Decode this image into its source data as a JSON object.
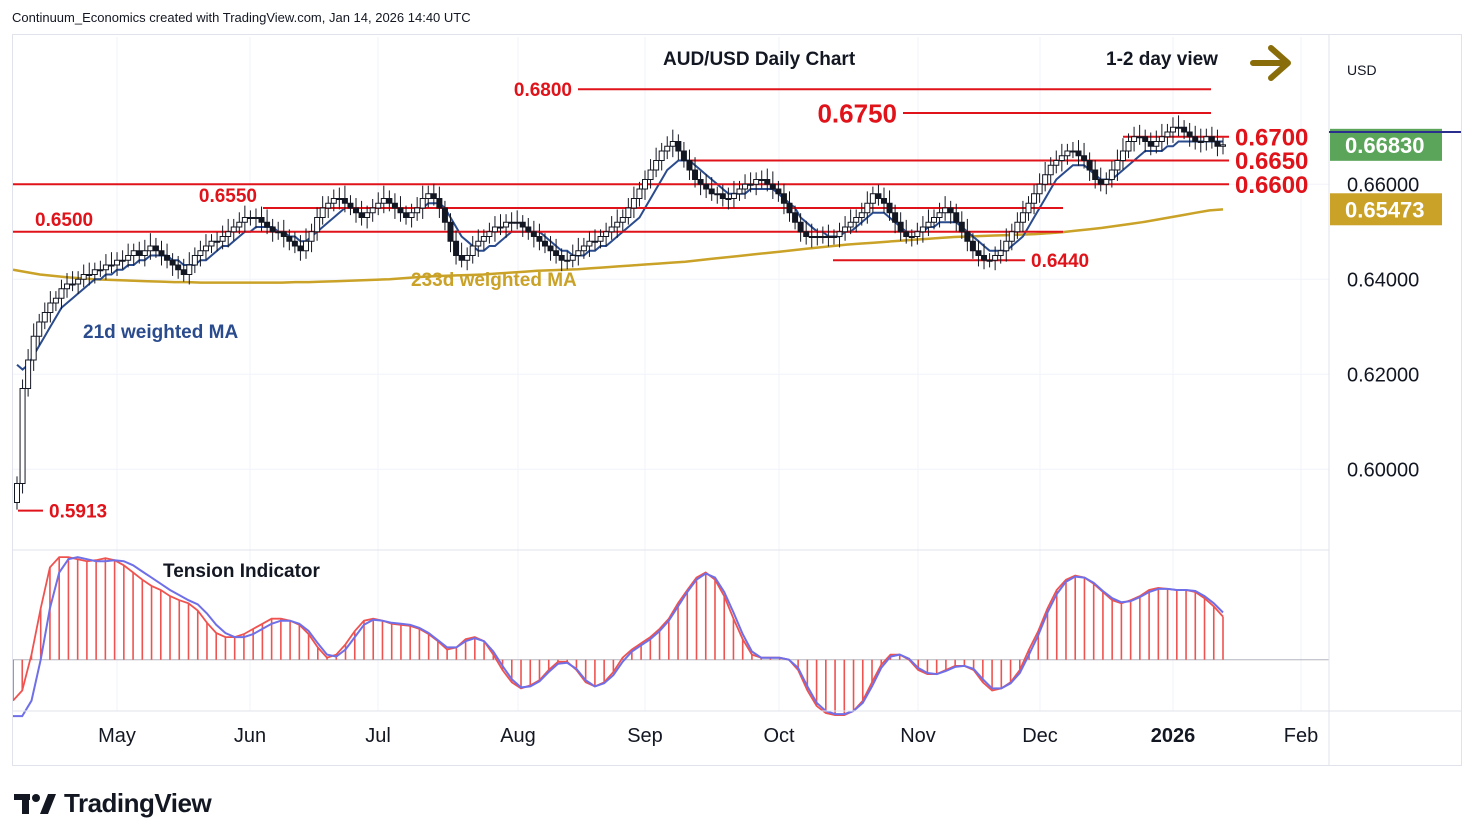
{
  "header": {
    "text": "Continuum_Economics created with TradingView.com, Jan 14, 2026 14:40 UTC"
  },
  "brand": {
    "name": "TradingView"
  },
  "colors": {
    "up": "#ffffff",
    "down": "#131722",
    "wick": "#131722",
    "ma21": "#2a4b8d",
    "ma233": "#c9a227",
    "level": "#e0131a",
    "arrow": "#8a6d0b",
    "tension_bar": "#ef5350",
    "tension_line": "#6f6fe8"
  },
  "chart_data": [
    {
      "type": "candlestick",
      "title": "AUD/USD Daily Chart",
      "view_label": "1-2 day view",
      "view_direction_icon": "arrow-right-icon",
      "currency": "USD",
      "x_ticks": [
        "May",
        "Jun",
        "Jul",
        "Aug",
        "Sep",
        "Oct",
        "Nov",
        "Dec",
        "2026",
        "Feb"
      ],
      "y_ticks": [
        "0.60000",
        "0.62000",
        "0.64000",
        "0.66000"
      ],
      "ylim": [
        0.583,
        0.691
      ],
      "price_badges": [
        {
          "label": "0.66830",
          "value": 0.6683,
          "color": "#5aa55a",
          "text_color": "#ffffff"
        },
        {
          "label": "0.65473",
          "value": 0.65473,
          "color": "#c9a227",
          "text_color": "#ffffff"
        }
      ],
      "levels": [
        {
          "label": "0.6800",
          "value": 0.68,
          "side": "left"
        },
        {
          "label": "0.6750",
          "value": 0.675,
          "side": "left"
        },
        {
          "label": "0.6700",
          "value": 0.67,
          "side": "right"
        },
        {
          "label": "0.6650",
          "value": 0.665,
          "side": "right"
        },
        {
          "label": "0.6600",
          "value": 0.66,
          "side": "right"
        },
        {
          "label": "0.6550",
          "value": 0.655,
          "side": "left"
        },
        {
          "label": "0.6500",
          "value": 0.65,
          "side": "left"
        },
        {
          "label": "0.6440",
          "value": 0.644,
          "side": "right"
        },
        {
          "label": "0.5913",
          "value": 0.5913,
          "side": "right"
        }
      ],
      "ma_labels": {
        "ma21": "21d weighted MA",
        "ma233": "233d weighted MA"
      },
      "series": [
        {
          "name": "Close",
          "values": [
            0.597,
            0.617,
            0.623,
            0.628,
            0.631,
            0.633,
            0.635,
            0.636,
            0.638,
            0.639,
            0.639,
            0.64,
            0.641,
            0.641,
            0.642,
            0.642,
            0.643,
            0.643,
            0.644,
            0.644,
            0.645,
            0.646,
            0.645,
            0.646,
            0.647,
            0.646,
            0.645,
            0.644,
            0.643,
            0.642,
            0.641,
            0.643,
            0.645,
            0.646,
            0.647,
            0.648,
            0.648,
            0.649,
            0.65,
            0.651,
            0.652,
            0.653,
            0.653,
            0.653,
            0.652,
            0.651,
            0.65,
            0.65,
            0.649,
            0.648,
            0.647,
            0.646,
            0.648,
            0.65,
            0.653,
            0.655,
            0.656,
            0.657,
            0.657,
            0.656,
            0.655,
            0.654,
            0.653,
            0.654,
            0.655,
            0.656,
            0.657,
            0.656,
            0.655,
            0.654,
            0.653,
            0.654,
            0.655,
            0.657,
            0.658,
            0.657,
            0.655,
            0.652,
            0.648,
            0.645,
            0.644,
            0.645,
            0.647,
            0.648,
            0.649,
            0.65,
            0.651,
            0.651,
            0.652,
            0.652,
            0.652,
            0.651,
            0.65,
            0.649,
            0.648,
            0.647,
            0.646,
            0.645,
            0.644,
            0.644,
            0.645,
            0.646,
            0.647,
            0.648,
            0.648,
            0.649,
            0.65,
            0.651,
            0.652,
            0.653,
            0.655,
            0.657,
            0.659,
            0.661,
            0.663,
            0.665,
            0.667,
            0.668,
            0.669,
            0.667,
            0.665,
            0.663,
            0.661,
            0.66,
            0.659,
            0.658,
            0.658,
            0.657,
            0.657,
            0.658,
            0.659,
            0.66,
            0.66,
            0.661,
            0.661,
            0.66,
            0.659,
            0.658,
            0.656,
            0.654,
            0.652,
            0.65,
            0.649,
            0.649,
            0.649,
            0.649,
            0.649,
            0.649,
            0.65,
            0.651,
            0.652,
            0.653,
            0.654,
            0.656,
            0.658,
            0.657,
            0.656,
            0.654,
            0.652,
            0.65,
            0.649,
            0.649,
            0.65,
            0.651,
            0.652,
            0.653,
            0.654,
            0.655,
            0.654,
            0.652,
            0.65,
            0.648,
            0.646,
            0.645,
            0.644,
            0.644,
            0.645,
            0.646,
            0.648,
            0.65,
            0.652,
            0.654,
            0.656,
            0.658,
            0.66,
            0.662,
            0.664,
            0.665,
            0.666,
            0.667,
            0.667,
            0.666,
            0.665,
            0.663,
            0.661,
            0.66,
            0.661,
            0.663,
            0.665,
            0.667,
            0.669,
            0.67,
            0.67,
            0.669,
            0.668,
            0.669,
            0.67,
            0.671,
            0.672,
            0.672,
            0.671,
            0.67,
            0.669,
            0.669,
            0.67,
            0.669,
            0.668,
            0.6683
          ]
        },
        {
          "name": "21d weighted MA",
          "values": [
            0.622,
            0.621,
            0.622,
            0.624,
            0.626,
            0.628,
            0.63,
            0.632,
            0.634,
            0.635,
            0.636,
            0.637,
            0.638,
            0.639,
            0.64,
            0.64,
            0.641,
            0.641,
            0.642,
            0.642,
            0.643,
            0.643,
            0.644,
            0.644,
            0.645,
            0.645,
            0.645,
            0.645,
            0.644,
            0.644,
            0.643,
            0.643,
            0.643,
            0.644,
            0.644,
            0.645,
            0.646,
            0.647,
            0.647,
            0.648,
            0.649,
            0.65,
            0.65,
            0.651,
            0.651,
            0.651,
            0.651,
            0.65,
            0.65,
            0.649,
            0.649,
            0.648,
            0.648,
            0.649,
            0.65,
            0.651,
            0.652,
            0.653,
            0.654,
            0.655,
            0.655,
            0.655,
            0.655,
            0.655,
            0.655,
            0.655,
            0.655,
            0.655,
            0.655,
            0.655,
            0.655,
            0.655,
            0.655,
            0.655,
            0.656,
            0.656,
            0.656,
            0.655,
            0.653,
            0.651,
            0.649,
            0.648,
            0.647,
            0.646,
            0.646,
            0.647,
            0.647,
            0.648,
            0.649,
            0.65,
            0.65,
            0.65,
            0.65,
            0.65,
            0.65,
            0.649,
            0.648,
            0.647,
            0.646,
            0.646,
            0.645,
            0.645,
            0.645,
            0.646,
            0.646,
            0.647,
            0.647,
            0.648,
            0.649,
            0.65,
            0.651,
            0.652,
            0.653,
            0.655,
            0.657,
            0.659,
            0.661,
            0.663,
            0.664,
            0.665,
            0.665,
            0.665,
            0.664,
            0.663,
            0.662,
            0.661,
            0.66,
            0.659,
            0.658,
            0.658,
            0.658,
            0.658,
            0.659,
            0.659,
            0.659,
            0.659,
            0.659,
            0.658,
            0.657,
            0.656,
            0.655,
            0.653,
            0.652,
            0.651,
            0.65,
            0.65,
            0.649,
            0.649,
            0.649,
            0.65,
            0.65,
            0.651,
            0.652,
            0.653,
            0.654,
            0.654,
            0.654,
            0.653,
            0.652,
            0.651,
            0.65,
            0.65,
            0.65,
            0.65,
            0.651,
            0.651,
            0.652,
            0.652,
            0.652,
            0.652,
            0.651,
            0.65,
            0.649,
            0.648,
            0.647,
            0.646,
            0.646,
            0.646,
            0.646,
            0.647,
            0.648,
            0.649,
            0.651,
            0.653,
            0.655,
            0.657,
            0.659,
            0.661,
            0.662,
            0.663,
            0.664,
            0.664,
            0.664,
            0.663,
            0.662,
            0.661,
            0.661,
            0.661,
            0.662,
            0.663,
            0.664,
            0.665,
            0.666,
            0.667,
            0.667,
            0.667,
            0.667,
            0.668,
            0.668,
            0.669,
            0.669,
            0.669,
            0.669,
            0.669,
            0.669,
            0.669,
            0.669,
            0.669
          ]
        },
        {
          "name": "233d weighted MA",
          "values": [
            0.642,
            0.6415,
            0.641,
            0.6407,
            0.6404,
            0.6402,
            0.64,
            0.6399,
            0.6398,
            0.6397,
            0.6396,
            0.6395,
            0.6394,
            0.6394,
            0.6393,
            0.6393,
            0.6393,
            0.6393,
            0.6393,
            0.6393,
            0.6393,
            0.6394,
            0.6394,
            0.6395,
            0.6396,
            0.6397,
            0.6398,
            0.6399,
            0.64,
            0.6402,
            0.6404,
            0.6406,
            0.6407,
            0.6408,
            0.6409,
            0.641,
            0.6412,
            0.6414,
            0.6416,
            0.6418,
            0.6419,
            0.642,
            0.6421,
            0.6423,
            0.6425,
            0.6427,
            0.6429,
            0.6431,
            0.6433,
            0.6435,
            0.6437,
            0.644,
            0.6443,
            0.6446,
            0.6449,
            0.6452,
            0.6455,
            0.6458,
            0.6461,
            0.6464,
            0.6467,
            0.647,
            0.6473,
            0.6475,
            0.6477,
            0.6479,
            0.6481,
            0.6483,
            0.6485,
            0.6487,
            0.6489,
            0.649,
            0.6491,
            0.6492,
            0.6493,
            0.6494,
            0.6495,
            0.6497,
            0.6499,
            0.6502,
            0.6505,
            0.6508,
            0.6512,
            0.6516,
            0.652,
            0.6525,
            0.653,
            0.6535,
            0.654,
            0.6545,
            0.6547
          ]
        }
      ]
    },
    {
      "type": "bar",
      "title": "Tension Indicator",
      "ylim": [
        -0.5,
        1.05
      ],
      "series": [
        {
          "name": "Tension",
          "values": [
            -0.4,
            -0.3,
            0.05,
            0.5,
            0.9,
            1.0,
            1.0,
            0.98,
            0.96,
            0.97,
            0.99,
            0.97,
            0.92,
            0.85,
            0.78,
            0.72,
            0.68,
            0.62,
            0.58,
            0.55,
            0.48,
            0.36,
            0.26,
            0.22,
            0.22,
            0.25,
            0.3,
            0.35,
            0.4,
            0.4,
            0.38,
            0.34,
            0.25,
            0.12,
            0.02,
            0.05,
            0.15,
            0.28,
            0.38,
            0.4,
            0.38,
            0.35,
            0.34,
            0.33,
            0.3,
            0.25,
            0.18,
            0.1,
            0.12,
            0.2,
            0.22,
            0.18,
            0.05,
            -0.1,
            -0.22,
            -0.28,
            -0.25,
            -0.2,
            -0.1,
            -0.02,
            -0.02,
            -0.1,
            -0.22,
            -0.26,
            -0.22,
            -0.12,
            0.02,
            0.1,
            0.16,
            0.22,
            0.3,
            0.4,
            0.55,
            0.68,
            0.8,
            0.85,
            0.78,
            0.62,
            0.4,
            0.2,
            0.05,
            0.02,
            0.02,
            0.02,
            0.0,
            -0.1,
            -0.3,
            -0.45,
            -0.52,
            -0.54,
            -0.54,
            -0.5,
            -0.4,
            -0.22,
            -0.05,
            0.05,
            0.05,
            0.0,
            -0.1,
            -0.14,
            -0.14,
            -0.1,
            -0.06,
            -0.06,
            -0.1,
            -0.22,
            -0.3,
            -0.28,
            -0.22,
            -0.1,
            0.1,
            0.28,
            0.5,
            0.68,
            0.78,
            0.82,
            0.8,
            0.74,
            0.66,
            0.58,
            0.55,
            0.58,
            0.62,
            0.68,
            0.7,
            0.69,
            0.68,
            0.68,
            0.66,
            0.6,
            0.52,
            0.42
          ]
        },
        {
          "name": "Signal",
          "values": [
            -0.55,
            -0.55,
            -0.4,
            0.0,
            0.5,
            0.85,
            0.98,
            1.0,
            0.98,
            0.96,
            0.96,
            0.97,
            0.96,
            0.92,
            0.86,
            0.8,
            0.74,
            0.68,
            0.63,
            0.58,
            0.54,
            0.45,
            0.34,
            0.26,
            0.22,
            0.22,
            0.25,
            0.3,
            0.35,
            0.38,
            0.38,
            0.35,
            0.28,
            0.16,
            0.05,
            0.03,
            0.1,
            0.22,
            0.34,
            0.39,
            0.38,
            0.36,
            0.35,
            0.34,
            0.31,
            0.26,
            0.19,
            0.12,
            0.12,
            0.18,
            0.21,
            0.18,
            0.08,
            -0.06,
            -0.19,
            -0.27,
            -0.26,
            -0.21,
            -0.12,
            -0.04,
            -0.03,
            -0.09,
            -0.2,
            -0.26,
            -0.23,
            -0.15,
            -0.02,
            0.08,
            0.14,
            0.2,
            0.28,
            0.38,
            0.52,
            0.66,
            0.78,
            0.84,
            0.8,
            0.66,
            0.46,
            0.25,
            0.08,
            0.02,
            0.02,
            0.02,
            0.0,
            -0.08,
            -0.26,
            -0.42,
            -0.5,
            -0.53,
            -0.53,
            -0.5,
            -0.42,
            -0.26,
            -0.08,
            0.03,
            0.05,
            0.01,
            -0.08,
            -0.13,
            -0.14,
            -0.11,
            -0.07,
            -0.06,
            -0.09,
            -0.19,
            -0.28,
            -0.28,
            -0.23,
            -0.13,
            0.05,
            0.24,
            0.46,
            0.64,
            0.76,
            0.81,
            0.8,
            0.75,
            0.67,
            0.6,
            0.56,
            0.57,
            0.61,
            0.66,
            0.69,
            0.69,
            0.68,
            0.68,
            0.67,
            0.62,
            0.55,
            0.46
          ]
        }
      ]
    }
  ]
}
